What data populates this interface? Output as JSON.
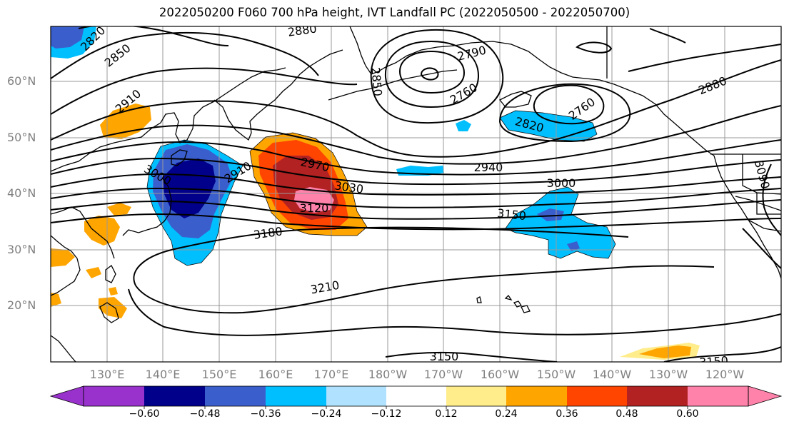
{
  "title": "2022050200 F060 700 hPa height, IVT Landfall PC (2022050500 - 2022050700)",
  "lat_labels": [
    "60°N",
    "50°N",
    "40°N",
    "30°N",
    "20°N"
  ],
  "lon_labels": [
    "130°E",
    "140°E",
    "150°E",
    "160°E",
    "170°E",
    "180°W",
    "170°W",
    "160°W",
    "150°W",
    "140°W",
    "130°W",
    "120°W"
  ],
  "colorbar": {
    "ticks": [
      "−0.60",
      "−0.48",
      "−0.36",
      "−0.24",
      "−0.12",
      "0.12",
      "0.24",
      "0.36",
      "0.48",
      "0.60"
    ],
    "colors": [
      "#9932cc",
      "#00008b",
      "#3a5fcd",
      "#00bfff",
      "#b0e2ff",
      "#ffffff",
      "#ffec8b",
      "#ffa500",
      "#ff4500",
      "#b22222",
      "#ff82ab"
    ]
  },
  "contour_labels": [
    "2880",
    "2820",
    "2850",
    "2790",
    "2850",
    "2760",
    "2910",
    "2820",
    "2760",
    "2880",
    "3000",
    "2910",
    "2970",
    "2940",
    "3030",
    "3000",
    "3090",
    "3120",
    "3150",
    "3180",
    "3210",
    "3150",
    "3150"
  ],
  "colors": {
    "positive_anomaly": "#ff4500",
    "negative_anomaly": "#00bfff",
    "contour": "#000000",
    "grid": "#999999",
    "axis_label": "#808080"
  }
}
